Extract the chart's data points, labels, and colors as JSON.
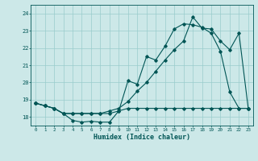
{
  "xlabel": "Humidex (Indice chaleur)",
  "bg_color": "#cce8e8",
  "grid_color": "#99cccc",
  "line_color": "#005555",
  "xlim_min": -0.5,
  "xlim_max": 23.5,
  "ylim_min": 17.5,
  "ylim_max": 24.5,
  "yticks": [
    18,
    19,
    20,
    21,
    22,
    23,
    24
  ],
  "xticks": [
    0,
    1,
    2,
    3,
    4,
    5,
    6,
    7,
    8,
    9,
    10,
    11,
    12,
    13,
    14,
    15,
    16,
    17,
    18,
    19,
    20,
    21,
    22,
    23
  ],
  "line_main_x": [
    0,
    1,
    2,
    3,
    4,
    5,
    6,
    7,
    8,
    9,
    10,
    11,
    12,
    13,
    14,
    15,
    16,
    17,
    18,
    19,
    20,
    21,
    22,
    23
  ],
  "line_main_y": [
    18.8,
    18.65,
    18.5,
    18.2,
    17.8,
    17.7,
    17.75,
    17.7,
    17.7,
    18.35,
    20.1,
    19.9,
    21.5,
    21.3,
    22.1,
    23.1,
    23.4,
    23.35,
    23.2,
    22.85,
    21.8,
    19.45,
    18.5,
    18.5
  ],
  "line_flat_x": [
    0,
    1,
    2,
    3,
    4,
    5,
    6,
    7,
    8,
    9,
    10,
    11,
    12,
    13,
    14,
    15,
    16,
    17,
    18,
    19,
    20,
    21,
    22,
    23
  ],
  "line_flat_y": [
    18.8,
    18.65,
    18.5,
    18.2,
    18.2,
    18.2,
    18.2,
    18.2,
    18.2,
    18.35,
    18.5,
    18.5,
    18.5,
    18.5,
    18.5,
    18.5,
    18.5,
    18.5,
    18.5,
    18.5,
    18.5,
    18.5,
    18.5,
    18.5
  ],
  "line_diag_x": [
    0,
    1,
    2,
    3,
    4,
    5,
    6,
    7,
    8,
    9,
    10,
    11,
    12,
    13,
    14,
    15,
    16,
    17,
    18,
    19,
    20,
    21,
    22,
    23
  ],
  "line_diag_y": [
    18.8,
    18.65,
    18.5,
    18.2,
    18.2,
    18.2,
    18.2,
    18.2,
    18.35,
    18.5,
    18.9,
    19.5,
    20.0,
    20.65,
    21.3,
    21.9,
    22.4,
    23.8,
    23.15,
    23.1,
    22.4,
    21.9,
    22.85,
    18.5
  ]
}
